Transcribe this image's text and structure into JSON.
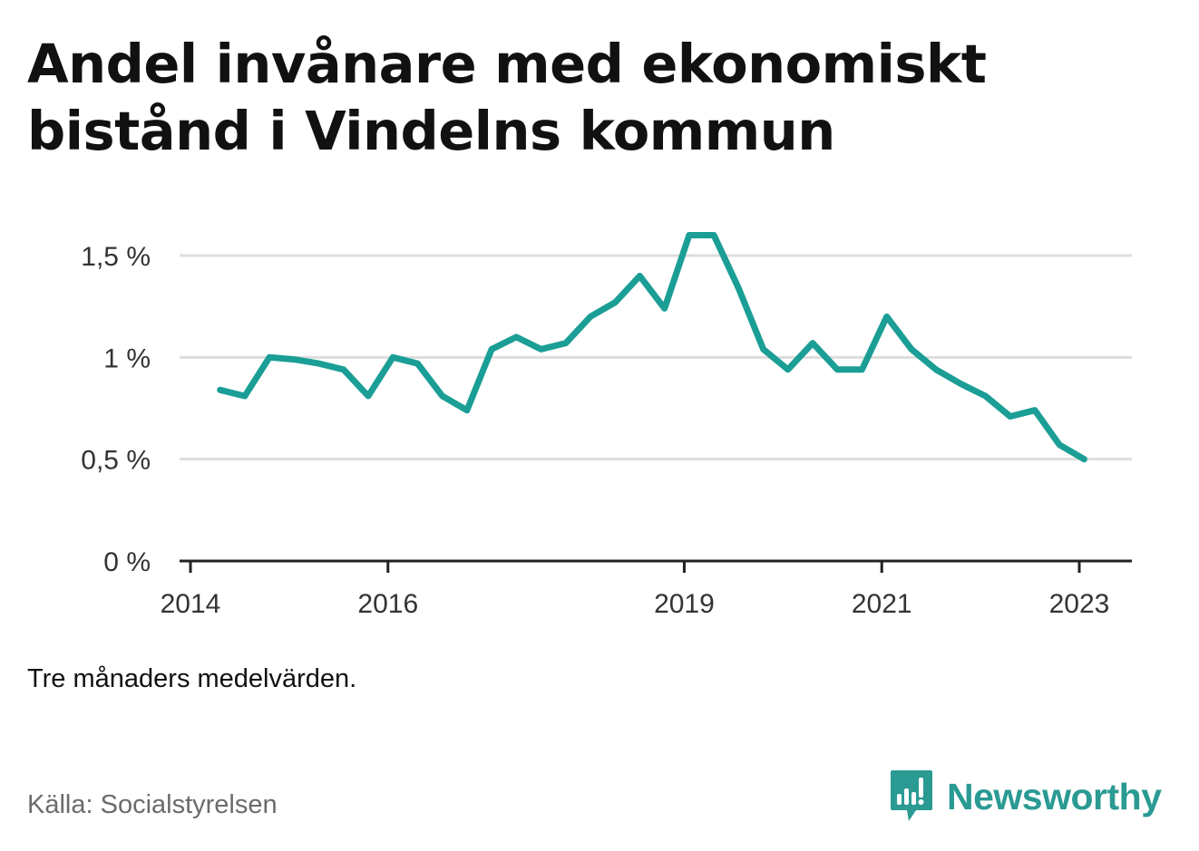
{
  "title": "Andel invånare med ekonomiskt bistånd i Vindelns kommun",
  "note": "Tre månaders medelvärden.",
  "source": "Källa: Socialstyrelsen",
  "brand": {
    "name": "Newsworthy",
    "icon": "newsworthy-logo-icon"
  },
  "colors": {
    "line": "#1a9e96",
    "grid": "#dddddd",
    "axis": "#222222",
    "brand": "#2a9a93"
  },
  "chart_data": {
    "type": "line",
    "title": "Andel invånare med ekonomiskt bistånd i Vindelns kommun",
    "xlabel": "",
    "ylabel": "",
    "xlim": [
      2014.0,
      2023.25
    ],
    "ylim": [
      0,
      1.5
    ],
    "x_ticks": [
      2014,
      2016,
      2019,
      2021,
      2023
    ],
    "y_ticks": [
      {
        "value": 0,
        "label": "0 %"
      },
      {
        "value": 0.5,
        "label": "0,5 %"
      },
      {
        "value": 1,
        "label": "1 %"
      },
      {
        "value": 1.5,
        "label": "1,5 %"
      }
    ],
    "grid": true,
    "series": [
      {
        "x": [
          2014.3,
          2014.55,
          2014.8,
          2015.05,
          2015.3,
          2015.55,
          2015.8,
          2016.05,
          2016.3,
          2016.55,
          2016.8,
          2017.05,
          2017.3,
          2017.55,
          2017.8,
          2018.05,
          2018.3,
          2018.55,
          2018.8,
          2019.05,
          2019.3,
          2019.55,
          2019.8,
          2020.05,
          2020.3,
          2020.55,
          2020.8,
          2021.05,
          2021.3,
          2021.55,
          2021.8,
          2022.05,
          2022.3,
          2022.55,
          2022.8,
          2023.05
        ],
        "values": [
          0.84,
          0.81,
          1.0,
          0.99,
          0.97,
          0.94,
          0.81,
          1.0,
          0.97,
          0.81,
          0.74,
          1.04,
          1.1,
          1.04,
          1.07,
          1.2,
          1.27,
          1.4,
          1.24,
          1.6,
          1.6,
          1.34,
          1.04,
          0.94,
          1.07,
          0.94,
          0.94,
          1.2,
          1.04,
          0.94,
          0.87,
          0.81,
          0.71,
          0.74,
          0.57,
          0.5
        ]
      }
    ]
  }
}
